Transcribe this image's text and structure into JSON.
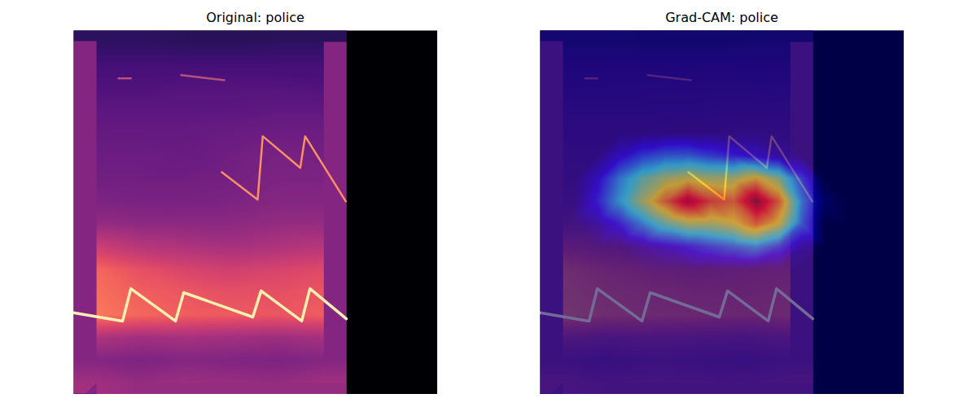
{
  "chart_data": [
    {
      "type": "heatmap",
      "title": "Original: police",
      "tick_labels": false,
      "xlim": [
        0,
        128
      ],
      "ylim": [
        0,
        128
      ],
      "signal_xlim": [
        0,
        96
      ],
      "value_range": [
        0,
        1
      ],
      "x": [
        8,
        24,
        40,
        56,
        72,
        88
      ],
      "y": [
        4,
        12,
        20,
        28,
        36,
        44,
        52,
        60,
        68,
        76,
        84,
        92,
        100,
        108,
        116,
        124
      ],
      "cells": [
        [
          0.45,
          0.42,
          0.44,
          0.43,
          0.42,
          0.45
        ],
        [
          0.38,
          0.36,
          0.38,
          0.37,
          0.36,
          0.38
        ],
        [
          0.48,
          0.45,
          0.46,
          0.45,
          0.44,
          0.46
        ],
        [
          0.72,
          0.68,
          0.66,
          0.65,
          0.64,
          0.66
        ],
        [
          0.7,
          0.66,
          0.64,
          0.62,
          0.62,
          0.64
        ],
        [
          0.68,
          0.62,
          0.58,
          0.56,
          0.58,
          0.6
        ],
        [
          0.55,
          0.5,
          0.48,
          0.46,
          0.48,
          0.5
        ],
        [
          0.42,
          0.4,
          0.4,
          0.4,
          0.42,
          0.42
        ],
        [
          0.36,
          0.35,
          0.35,
          0.36,
          0.38,
          0.38
        ],
        [
          0.33,
          0.33,
          0.33,
          0.34,
          0.36,
          0.36
        ],
        [
          0.32,
          0.32,
          0.31,
          0.33,
          0.35,
          0.34
        ],
        [
          0.3,
          0.3,
          0.3,
          0.31,
          0.32,
          0.32
        ],
        [
          0.28,
          0.28,
          0.28,
          0.28,
          0.29,
          0.29
        ],
        [
          0.25,
          0.25,
          0.26,
          0.26,
          0.26,
          0.25
        ],
        [
          0.22,
          0.22,
          0.22,
          0.22,
          0.22,
          0.22
        ],
        [
          0.17,
          0.17,
          0.16,
          0.16,
          0.17,
          0.17
        ]
      ],
      "series": [
        {
          "color": "#fcf0b0",
          "x": [
            0,
            17.2,
            20.1,
            35.8,
            38.7,
            63.0,
            65.9,
            80.2,
            83.1,
            95.9
          ],
          "y": [
            28.7,
            25.8,
            37.2,
            25.8,
            35.8,
            27.2,
            36.4,
            25.8,
            37.2,
            26.6
          ]
        },
        {
          "color": "#f99065",
          "x": [
            52.1,
            64.7,
            66.5,
            79.7,
            81.4,
            95.7
          ],
          "y": [
            78.2,
            68.5,
            90.8,
            79.7,
            90.8,
            67.9
          ]
        },
        {
          "color": "#d2607a",
          "x": [
            15.8,
            20.1
          ],
          "y": [
            111.2,
            111.2
          ]
        },
        {
          "color": "#d2607a",
          "x": [
            37.8,
            53.0
          ],
          "y": [
            112.3,
            110.5
          ]
        }
      ]
    },
    {
      "type": "heatmap_overlay",
      "title": "Grad-CAM: police",
      "tick_labels": false,
      "xlim": [
        0,
        128
      ],
      "ylim": [
        0,
        128
      ],
      "signal_xlim": [
        0,
        96
      ],
      "value_range": [
        0,
        1
      ],
      "x": [
        8,
        24,
        40,
        56,
        72,
        88
      ],
      "y": [
        4,
        12,
        20,
        28,
        36,
        44,
        52,
        60,
        68,
        76,
        84,
        92,
        100,
        108,
        116,
        124
      ],
      "cells": [
        [
          0.45,
          0.42,
          0.44,
          0.43,
          0.42,
          0.45
        ],
        [
          0.38,
          0.36,
          0.38,
          0.37,
          0.36,
          0.38
        ],
        [
          0.48,
          0.45,
          0.46,
          0.45,
          0.44,
          0.46
        ],
        [
          0.72,
          0.68,
          0.66,
          0.65,
          0.64,
          0.66
        ],
        [
          0.7,
          0.66,
          0.64,
          0.62,
          0.62,
          0.64
        ],
        [
          0.68,
          0.62,
          0.58,
          0.56,
          0.58,
          0.6
        ],
        [
          0.55,
          0.5,
          0.48,
          0.46,
          0.48,
          0.5
        ],
        [
          0.42,
          0.4,
          0.4,
          0.4,
          0.42,
          0.42
        ],
        [
          0.36,
          0.35,
          0.35,
          0.36,
          0.38,
          0.38
        ],
        [
          0.33,
          0.33,
          0.33,
          0.34,
          0.36,
          0.36
        ],
        [
          0.32,
          0.32,
          0.31,
          0.33,
          0.35,
          0.34
        ],
        [
          0.3,
          0.3,
          0.3,
          0.31,
          0.32,
          0.32
        ],
        [
          0.28,
          0.28,
          0.28,
          0.28,
          0.29,
          0.29
        ],
        [
          0.25,
          0.25,
          0.26,
          0.26,
          0.26,
          0.25
        ],
        [
          0.22,
          0.22,
          0.22,
          0.22,
          0.22,
          0.22
        ],
        [
          0.17,
          0.17,
          0.16,
          0.16,
          0.17,
          0.17
        ]
      ],
      "series": [
        {
          "color": "#fcf0b0",
          "x": [
            0,
            17.2,
            20.1,
            35.8,
            38.7,
            63.0,
            65.9,
            80.2,
            83.1,
            95.9
          ],
          "y": [
            28.7,
            25.8,
            37.2,
            25.8,
            35.8,
            27.2,
            36.4,
            25.8,
            37.2,
            26.6
          ]
        },
        {
          "color": "#f99065",
          "x": [
            52.1,
            64.7,
            66.5,
            79.7,
            81.4,
            95.7
          ],
          "y": [
            78.2,
            68.5,
            90.8,
            79.7,
            90.8,
            67.9
          ]
        },
        {
          "color": "#d2607a",
          "x": [
            15.8,
            20.1
          ],
          "y": [
            111.2,
            111.2
          ]
        },
        {
          "color": "#d2607a",
          "x": [
            37.8,
            53.0
          ],
          "y": [
            112.3,
            110.5
          ]
        }
      ],
      "cam_range": [
        0,
        1
      ],
      "cam_x": [
        4,
        12,
        20,
        28,
        36,
        44,
        52,
        60,
        68,
        76,
        84,
        92,
        100,
        108,
        116,
        124
      ],
      "cam_y": [
        4,
        12,
        20,
        28,
        36,
        44,
        52,
        60,
        68,
        76,
        84,
        92,
        100,
        108,
        116,
        124
      ],
      "cam": [
        [
          0,
          0,
          0,
          0,
          0,
          0,
          0,
          0,
          0,
          0,
          0,
          0,
          0,
          0,
          0,
          0
        ],
        [
          0,
          0,
          0,
          0,
          0,
          0,
          0,
          0,
          0,
          0,
          0,
          0,
          0,
          0,
          0,
          0
        ],
        [
          0,
          0,
          0,
          0,
          0,
          0,
          0,
          0,
          0,
          0,
          0,
          0,
          0,
          0,
          0,
          0
        ],
        [
          0,
          0,
          0,
          0,
          0,
          0,
          0,
          0,
          0,
          0,
          0,
          0,
          0,
          0,
          0,
          0
        ],
        [
          0,
          0,
          0,
          0,
          0,
          0,
          0,
          0,
          0,
          0,
          0,
          0,
          0,
          0,
          0,
          0
        ],
        [
          0,
          0,
          0,
          0,
          0,
          0,
          0,
          0,
          0,
          0,
          0,
          0,
          0,
          0,
          0,
          0
        ],
        [
          0,
          0,
          0,
          0,
          0.05,
          0.1,
          0.15,
          0.2,
          0.25,
          0.3,
          0.2,
          0.05,
          0,
          0,
          0,
          0
        ],
        [
          0,
          0,
          0.05,
          0.15,
          0.3,
          0.45,
          0.55,
          0.55,
          0.6,
          0.75,
          0.6,
          0.25,
          0,
          0,
          0,
          0
        ],
        [
          0,
          0,
          0.15,
          0.35,
          0.55,
          0.75,
          0.95,
          0.8,
          0.75,
          1.0,
          0.75,
          0.3,
          0.05,
          0,
          0,
          0
        ],
        [
          0,
          0,
          0.1,
          0.3,
          0.45,
          0.55,
          0.6,
          0.55,
          0.55,
          0.65,
          0.5,
          0.2,
          0,
          0,
          0,
          0
        ],
        [
          0,
          0,
          0,
          0.1,
          0.2,
          0.25,
          0.25,
          0.2,
          0.15,
          0.1,
          0.05,
          0,
          0,
          0,
          0,
          0
        ],
        [
          0,
          0,
          0,
          0,
          0,
          0,
          0,
          0,
          0,
          0,
          0,
          0,
          0,
          0,
          0,
          0
        ],
        [
          0,
          0,
          0,
          0,
          0,
          0,
          0,
          0,
          0,
          0,
          0,
          0,
          0,
          0,
          0,
          0
        ],
        [
          0,
          0,
          0,
          0,
          0,
          0,
          0,
          0,
          0,
          0,
          0,
          0,
          0,
          0,
          0,
          0
        ],
        [
          0,
          0,
          0,
          0,
          0,
          0,
          0,
          0,
          0,
          0,
          0,
          0,
          0,
          0,
          0,
          0
        ],
        [
          0,
          0,
          0,
          0,
          0,
          0,
          0,
          0,
          0,
          0,
          0,
          0,
          0,
          0,
          0,
          0
        ]
      ]
    }
  ]
}
